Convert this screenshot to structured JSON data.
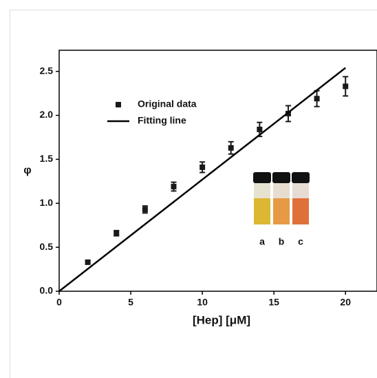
{
  "chart_data": {
    "type": "scatter",
    "xlabel": "[Hep] [μM]",
    "ylabel": "φ",
    "xlim": [
      0,
      22.2
    ],
    "ylim": [
      0,
      2.74
    ],
    "xticks": [
      0,
      5,
      10,
      15,
      20
    ],
    "yticks": [
      {
        "value": 0,
        "label": "0.0"
      },
      0.5,
      {
        "value": 1,
        "label": "1.0"
      },
      1.5,
      {
        "value": 2,
        "label": "2.0"
      },
      2.5
    ],
    "legend": "upper left",
    "series": [
      {
        "name": "Original data",
        "mode": "markers",
        "color": "#1a1a1a",
        "x": [
          2,
          4,
          6,
          8,
          10,
          12,
          14,
          16,
          18,
          20
        ],
        "values": [
          0.33,
          0.66,
          0.93,
          1.19,
          1.41,
          1.63,
          1.84,
          2.02,
          2.19,
          2.33
        ],
        "errors": [
          0.02,
          0.03,
          0.04,
          0.05,
          0.06,
          0.07,
          0.08,
          0.09,
          0.09,
          0.11
        ]
      },
      {
        "name": "Fitting line",
        "mode": "line",
        "color": "#000000",
        "x": [
          0,
          20
        ],
        "values": [
          0,
          2.54
        ]
      }
    ],
    "annotations": [
      "a",
      "b",
      "c"
    ]
  }
}
